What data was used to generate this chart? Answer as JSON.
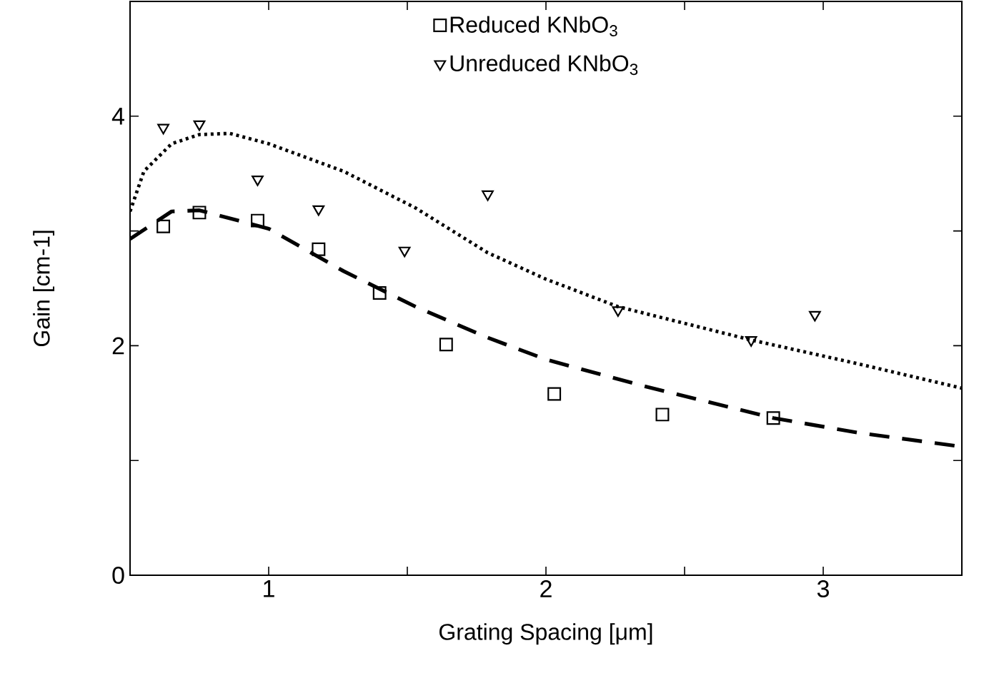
{
  "chart_data": {
    "type": "scatter",
    "xlabel": "Grating Spacing [μm]",
    "ylabel": "Gain [cm-1]",
    "xlim": [
      0.5,
      3.5
    ],
    "ylim": [
      0,
      5
    ],
    "xticks": [
      1,
      {
        "value": 1.5,
        "label": null
      },
      2,
      {
        "value": 2.5,
        "label": null
      },
      3
    ],
    "yticks": [
      0,
      {
        "value": 1,
        "label": null
      },
      2,
      {
        "value": 3,
        "label": null
      },
      4
    ],
    "grid": false,
    "legend": "top",
    "series": [
      {
        "name": "Reduced KNbO$_{3}$",
        "marker": "square",
        "color": "#000000",
        "x": [
          0.62,
          0.75,
          0.96,
          1.18,
          1.4,
          1.64,
          2.03,
          2.42,
          2.82
        ],
        "values": [
          3.04,
          3.16,
          3.09,
          2.84,
          2.46,
          2.01,
          1.58,
          1.4,
          1.37
        ]
      },
      {
        "name": "Unreduced KNbO$_{3}$",
        "marker": "triangle",
        "color": "#000000",
        "x": [
          0.62,
          0.75,
          0.96,
          1.18,
          1.49,
          1.79,
          2.26,
          2.74,
          2.97
        ],
        "values": [
          3.9,
          3.93,
          3.45,
          3.19,
          2.83,
          3.32,
          2.31,
          2.05,
          2.27
        ]
      },
      {
        "type": "line",
        "marker": "none",
        "line_style": "dashed",
        "color": "#000000",
        "x": [
          0.5,
          0.65,
          0.75,
          1.0,
          1.27,
          1.53,
          1.79,
          2.0,
          2.35,
          2.82,
          3.13,
          3.5
        ],
        "values": [
          2.93,
          3.17,
          3.18,
          3.02,
          2.65,
          2.34,
          2.07,
          1.88,
          1.65,
          1.37,
          1.24,
          1.12
        ]
      },
      {
        "type": "line",
        "marker": "none",
        "line_style": "dotted",
        "color": "#000000",
        "x": [
          0.5,
          0.55,
          0.65,
          0.75,
          0.86,
          1.0,
          1.27,
          1.53,
          1.79,
          2.0,
          2.26,
          2.74,
          3.13,
          3.5
        ],
        "values": [
          3.17,
          3.52,
          3.76,
          3.84,
          3.85,
          3.76,
          3.52,
          3.2,
          2.81,
          2.58,
          2.34,
          2.05,
          1.84,
          1.63
        ]
      }
    ]
  }
}
